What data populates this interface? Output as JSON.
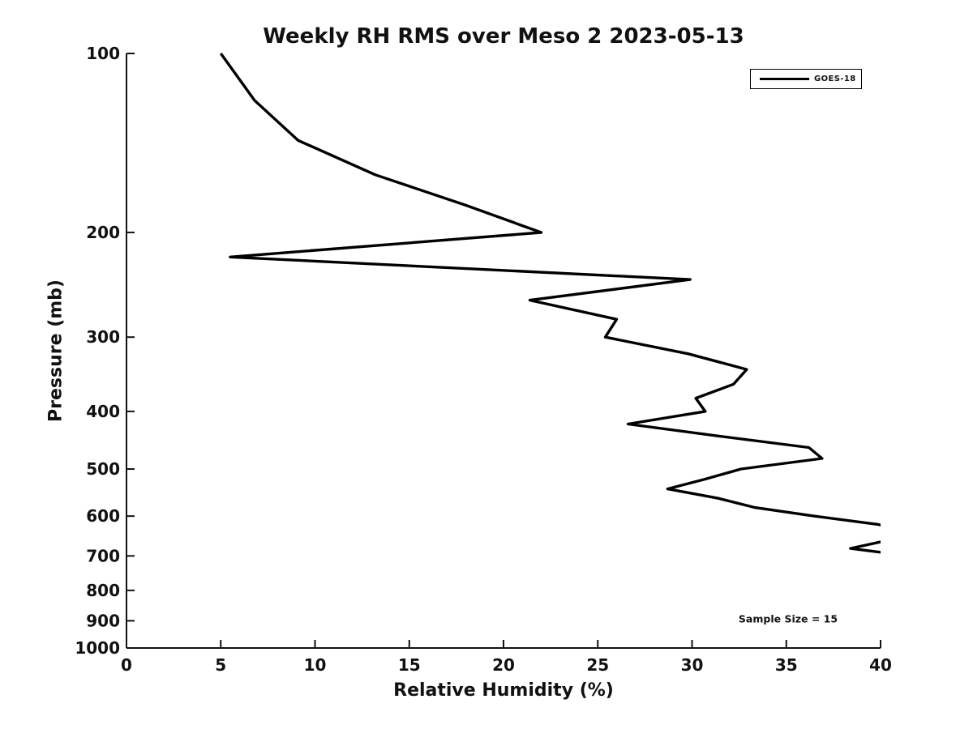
{
  "figure": {
    "title": "Weekly RH RMS over Meso 2 2023-05-13",
    "xlabel": "Relative Humidity (%)",
    "ylabel": "Pressure (mb)",
    "annotation": "Sample Size = 15",
    "legend": {
      "position": "upper right",
      "entries": [
        {
          "label": "GOES-18",
          "line_color": "#000000",
          "line_style": "solid"
        }
      ]
    },
    "colors": {
      "background": "#ffffff",
      "line": "#000000",
      "text": "#111111",
      "spine": "#111111"
    }
  },
  "chart_data": {
    "type": "line",
    "title": "Weekly RH RMS over Meso 2 2023-05-13",
    "xlabel": "Relative Humidity (%)",
    "ylabel": "Pressure (mb)",
    "xlim": [
      0,
      40
    ],
    "ylim": [
      100,
      1000
    ],
    "yscale": "log",
    "y_axis_inverted": true,
    "grid": false,
    "xticks": [
      0,
      5,
      10,
      15,
      20,
      25,
      30,
      35,
      40
    ],
    "yticks": [
      100,
      200,
      300,
      400,
      500,
      600,
      700,
      800,
      900,
      1000
    ],
    "legend_position": "upper right",
    "annotation": "Sample Size = 15",
    "series": [
      {
        "name": "GOES-18",
        "pressure_mb": [
          100,
          120,
          140,
          160,
          180,
          200,
          220,
          240,
          260,
          280,
          300,
          320,
          340,
          360,
          380,
          400,
          420,
          440,
          460,
          480,
          500,
          520,
          540,
          560,
          580,
          600,
          620,
          640,
          660,
          680,
          700
        ],
        "rh_rms_pct": [
          5.0,
          6.8,
          9.1,
          13.2,
          18.0,
          22.0,
          5.5,
          29.9,
          21.4,
          26.0,
          25.4,
          29.8,
          32.9,
          32.2,
          30.2,
          30.7,
          26.6,
          31.4,
          36.2,
          36.9,
          32.6,
          30.7,
          28.7,
          31.4,
          33.3,
          36.5,
          39.9,
          41.5,
          40.3,
          38.4,
          41.5
        ]
      }
    ]
  }
}
